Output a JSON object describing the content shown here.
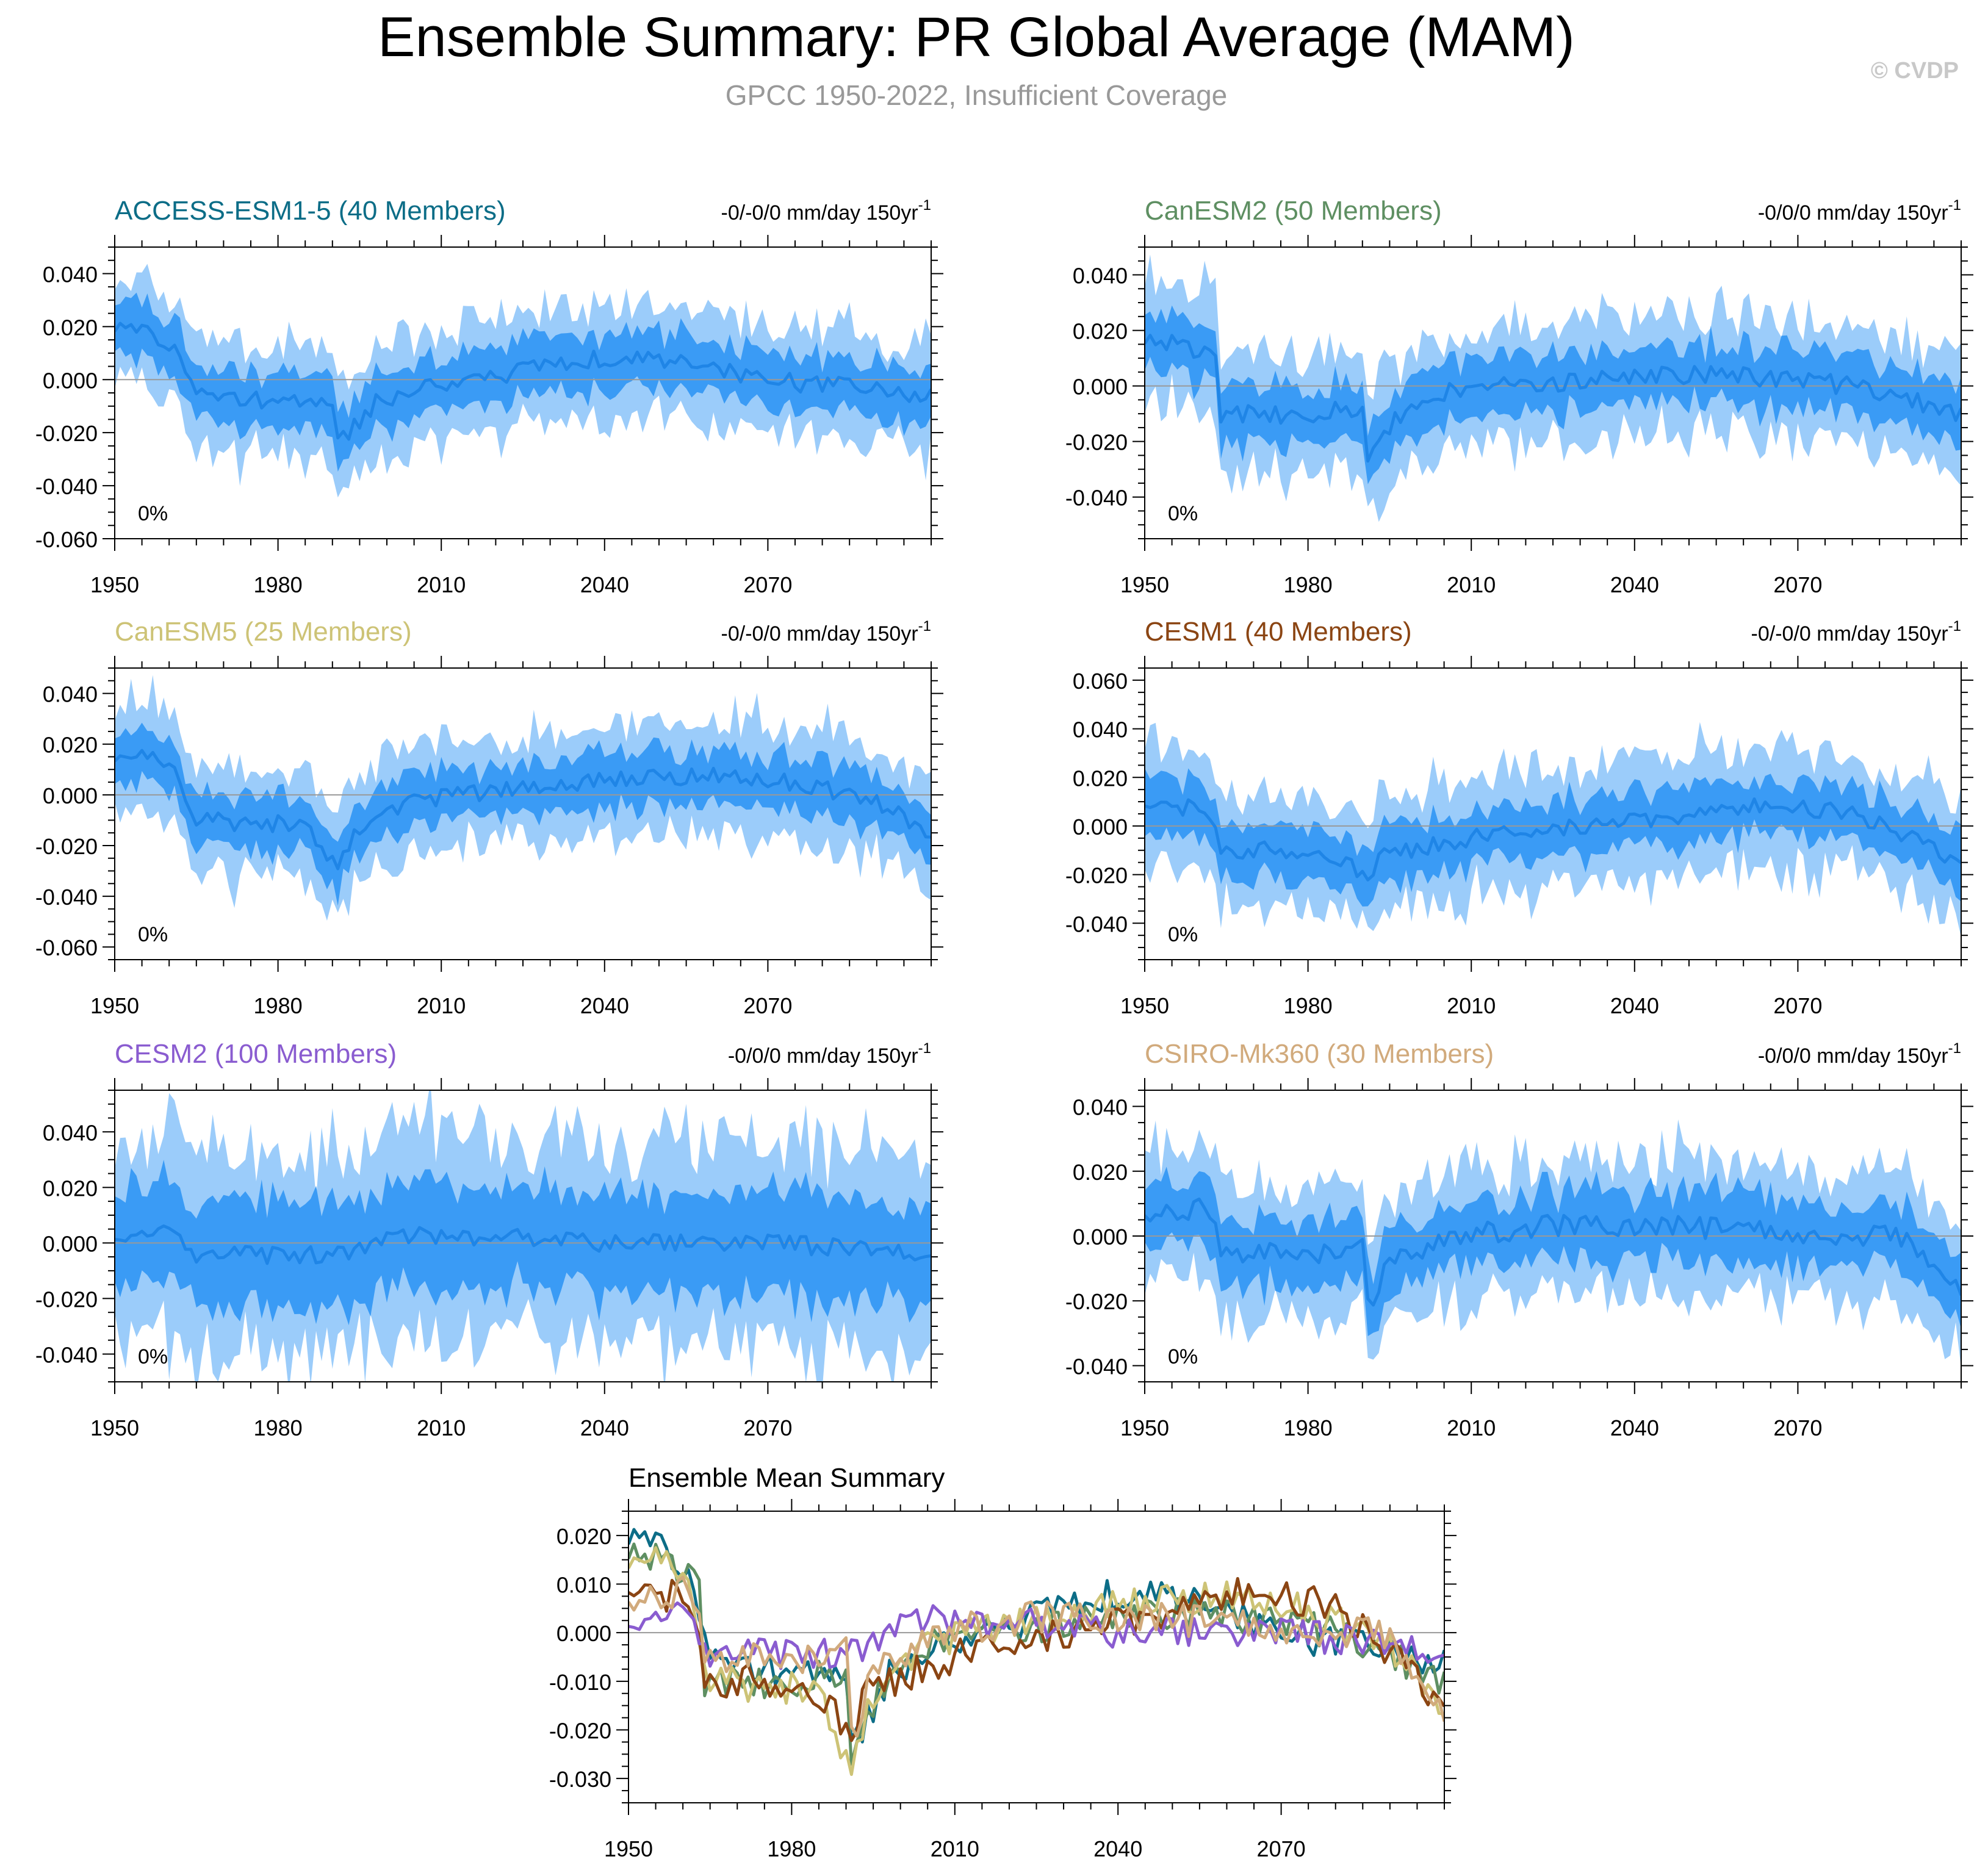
{
  "page": {
    "title": "Ensemble Summary: PR Global Average (MAM)",
    "subtitle": "GPCC 1950-2022, Insufficient Coverage",
    "watermark": "© CVDP"
  },
  "colors": {
    "outer_band": "#9bccfa",
    "inner_band": "#3a9bf5",
    "mean_line": "#1f85e6",
    "zero_line": "#999999",
    "subtitle": "#999999",
    "watermark": "#c8c8c8"
  },
  "chart_data": [
    {
      "type": "area",
      "id": "access",
      "title": "ACCESS-ESM1-5 (40 Members)",
      "title_color": "#0c6d87",
      "trend_label": "-0/-0/0 mm/day 150yr",
      "trend_exp": "-1",
      "percent_label": "0%",
      "xlim": [
        1950,
        2100
      ],
      "ylim": [
        -0.06,
        0.05
      ],
      "yticks": [
        0.04,
        0.02,
        0.0,
        -0.02,
        -0.04,
        -0.06
      ],
      "ytick_labels": [
        "0.040",
        "0.020",
        "0.000",
        "-0.020",
        "-0.040",
        "-0.060"
      ],
      "xticks": [
        1950,
        1980,
        2010,
        2040,
        2070
      ],
      "xtick_labels": [
        "1950",
        "1980",
        "2010",
        "2040",
        "2070"
      ],
      "keyframes": [
        [
          1950,
          0.02
        ],
        [
          1957,
          0.018
        ],
        [
          1962,
          0.01
        ],
        [
          1964,
          -0.003
        ],
        [
          1975,
          -0.008
        ],
        [
          1990,
          -0.01
        ],
        [
          1991,
          -0.025
        ],
        [
          1993,
          -0.02
        ],
        [
          1998,
          -0.008
        ],
        [
          2010,
          -0.002
        ],
        [
          2040,
          0.008
        ],
        [
          2055,
          0.007
        ],
        [
          2070,
          0.0
        ],
        [
          2085,
          -0.003
        ],
        [
          2100,
          -0.007
        ]
      ],
      "inner_halfwidth": 0.01,
      "outer_halfwidth": 0.02,
      "seed": 11
    },
    {
      "type": "area",
      "id": "canesm2",
      "title": "CanESM2 (50 Members)",
      "title_color": "#5e8f62",
      "trend_label": "-0/0/0 mm/day 150yr",
      "trend_exp": "-1",
      "percent_label": "0%",
      "xlim": [
        1950,
        2100
      ],
      "ylim": [
        -0.055,
        0.05
      ],
      "yticks": [
        0.04,
        0.02,
        0.0,
        -0.02,
        -0.04
      ],
      "ytick_labels": [
        "0.040",
        "0.020",
        "0.000",
        "-0.020",
        "-0.040"
      ],
      "xticks": [
        1950,
        1980,
        2010,
        2040,
        2070
      ],
      "xtick_labels": [
        "1950",
        "1980",
        "2010",
        "2040",
        "2070"
      ],
      "keyframes": [
        [
          1950,
          0.017
        ],
        [
          1958,
          0.015
        ],
        [
          1963,
          0.008
        ],
        [
          1964,
          -0.01
        ],
        [
          1980,
          -0.01
        ],
        [
          1990,
          -0.008
        ],
        [
          1991,
          -0.028
        ],
        [
          1993,
          -0.018
        ],
        [
          2000,
          -0.005
        ],
        [
          2010,
          0.0
        ],
        [
          2040,
          0.003
        ],
        [
          2060,
          0.004
        ],
        [
          2080,
          0.0
        ],
        [
          2100,
          -0.01
        ]
      ],
      "inner_halfwidth": 0.01,
      "outer_halfwidth": 0.021,
      "seed": 23
    },
    {
      "type": "area",
      "id": "canesm5",
      "title": "CanESM5 (25 Members)",
      "title_color": "#cdc376",
      "trend_label": "-0/-0/0 mm/day 150yr",
      "trend_exp": "-1",
      "percent_label": "0%",
      "xlim": [
        1950,
        2100
      ],
      "ylim": [
        -0.065,
        0.05
      ],
      "yticks": [
        0.04,
        0.02,
        0.0,
        -0.02,
        -0.04,
        -0.06
      ],
      "ytick_labels": [
        "0.040",
        "0.020",
        "0.000",
        "-0.020",
        "-0.040",
        "-0.060"
      ],
      "xticks": [
        1950,
        1980,
        2010,
        2040,
        2070
      ],
      "xtick_labels": [
        "1950",
        "1980",
        "2010",
        "2040",
        "2070"
      ],
      "keyframes": [
        [
          1950,
          0.015
        ],
        [
          1958,
          0.016
        ],
        [
          1962,
          0.005
        ],
        [
          1964,
          -0.01
        ],
        [
          1985,
          -0.012
        ],
        [
          1991,
          -0.03
        ],
        [
          1994,
          -0.015
        ],
        [
          2005,
          -0.002
        ],
        [
          2040,
          0.006
        ],
        [
          2060,
          0.008
        ],
        [
          2080,
          0.003
        ],
        [
          2092,
          -0.005
        ],
        [
          2100,
          -0.017
        ]
      ],
      "inner_halfwidth": 0.01,
      "outer_halfwidth": 0.021,
      "seed": 37
    },
    {
      "type": "area",
      "id": "cesm1",
      "title": "CESM1 (40 Members)",
      "title_color": "#8b4513",
      "trend_label": "-0/-0/0 mm/day 150yr",
      "trend_exp": "-1",
      "percent_label": "0%",
      "xlim": [
        1950,
        2100
      ],
      "ylim": [
        -0.055,
        0.065
      ],
      "yticks": [
        0.06,
        0.04,
        0.02,
        0.0,
        -0.02,
        -0.04
      ],
      "ytick_labels": [
        "0.060",
        "0.040",
        "0.020",
        "0.000",
        "-0.020",
        "-0.040"
      ],
      "xticks": [
        1950,
        1980,
        2010,
        2040,
        2070
      ],
      "xtick_labels": [
        "1950",
        "1980",
        "2010",
        "2040",
        "2070"
      ],
      "keyframes": [
        [
          1950,
          0.01
        ],
        [
          1962,
          0.006
        ],
        [
          1964,
          -0.01
        ],
        [
          1980,
          -0.01
        ],
        [
          1991,
          -0.02
        ],
        [
          1994,
          -0.012
        ],
        [
          2010,
          -0.005
        ],
        [
          2040,
          0.002
        ],
        [
          2060,
          0.008
        ],
        [
          2080,
          0.006
        ],
        [
          2100,
          -0.015
        ]
      ],
      "inner_halfwidth": 0.011,
      "outer_halfwidth": 0.023,
      "seed": 41
    },
    {
      "type": "area",
      "id": "cesm2",
      "title": "CESM2 (100 Members)",
      "title_color": "#8a5cd0",
      "trend_label": "-0/0/0 mm/day 150yr",
      "trend_exp": "-1",
      "percent_label": "0%",
      "xlim": [
        1950,
        2100
      ],
      "ylim": [
        -0.05,
        0.055
      ],
      "yticks": [
        0.04,
        0.02,
        0.0,
        -0.02,
        -0.04
      ],
      "ytick_labels": [
        "0.040",
        "0.020",
        "0.000",
        "-0.020",
        "-0.040"
      ],
      "xticks": [
        1950,
        1980,
        2010,
        2040,
        2070
      ],
      "xtick_labels": [
        "1950",
        "1980",
        "2010",
        "2040",
        "2070"
      ],
      "keyframes": [
        [
          1950,
          0.003
        ],
        [
          1960,
          0.005
        ],
        [
          1965,
          -0.004
        ],
        [
          1990,
          -0.005
        ],
        [
          2000,
          0.003
        ],
        [
          2010,
          0.003
        ],
        [
          2040,
          0.0
        ],
        [
          2070,
          0.0
        ],
        [
          2100,
          -0.003
        ]
      ],
      "inner_halfwidth": 0.018,
      "outer_halfwidth": 0.036,
      "seed": 53
    },
    {
      "type": "area",
      "id": "csiro",
      "title": "CSIRO-Mk360 (30 Members)",
      "title_color": "#d1aa7c",
      "trend_label": "-0/0/0 mm/day 150yr",
      "trend_exp": "-1",
      "percent_label": "0%",
      "xlim": [
        1950,
        2100
      ],
      "ylim": [
        -0.045,
        0.045
      ],
      "yticks": [
        0.04,
        0.02,
        0.0,
        -0.02,
        -0.04
      ],
      "ytick_labels": [
        "0.040",
        "0.020",
        "0.000",
        "-0.020",
        "-0.040"
      ],
      "xticks": [
        1950,
        1980,
        2010,
        2040,
        2070
      ],
      "xtick_labels": [
        "1950",
        "1980",
        "2010",
        "2040",
        "2070"
      ],
      "keyframes": [
        [
          1950,
          0.008
        ],
        [
          1962,
          0.008
        ],
        [
          1964,
          -0.005
        ],
        [
          1985,
          -0.006
        ],
        [
          1990,
          -0.004
        ],
        [
          1991,
          -0.022
        ],
        [
          1994,
          -0.01
        ],
        [
          2005,
          0.0
        ],
        [
          2030,
          0.004
        ],
        [
          2060,
          0.002
        ],
        [
          2090,
          0.0
        ],
        [
          2100,
          -0.015
        ]
      ],
      "inner_halfwidth": 0.01,
      "outer_halfwidth": 0.02,
      "seed": 67
    },
    {
      "type": "line",
      "id": "mean",
      "title": "Ensemble Mean Summary",
      "xlim": [
        1950,
        2100
      ],
      "ylim": [
        -0.035,
        0.025
      ],
      "yticks": [
        0.02,
        0.01,
        0.0,
        -0.01,
        -0.02,
        -0.03
      ],
      "ytick_labels": [
        "0.020",
        "0.010",
        "0.000",
        "-0.010",
        "-0.020",
        "-0.030"
      ],
      "xticks": [
        1950,
        1980,
        2010,
        2040,
        2070
      ],
      "xtick_labels": [
        "1950",
        "1980",
        "2010",
        "2040",
        "2070"
      ],
      "series": [
        {
          "name": "ACCESS-ESM1-5",
          "color": "#0c6d87",
          "source": "access"
        },
        {
          "name": "CanESM2",
          "color": "#5e8f62",
          "source": "canesm2"
        },
        {
          "name": "CanESM5",
          "color": "#cdc376",
          "source": "canesm5"
        },
        {
          "name": "CESM1",
          "color": "#8b4513",
          "source": "cesm1"
        },
        {
          "name": "CESM2",
          "color": "#8a5cd0",
          "source": "cesm2"
        },
        {
          "name": "CSIRO-Mk360",
          "color": "#d1aa7c",
          "source": "csiro"
        }
      ]
    }
  ]
}
